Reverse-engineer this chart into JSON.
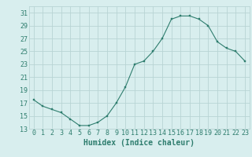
{
  "x": [
    0,
    1,
    2,
    3,
    4,
    5,
    6,
    7,
    8,
    9,
    10,
    11,
    12,
    13,
    14,
    15,
    16,
    17,
    18,
    19,
    20,
    21,
    22,
    23
  ],
  "y": [
    17.5,
    16.5,
    16.0,
    15.5,
    14.5,
    13.5,
    13.5,
    14.0,
    15.0,
    17.0,
    19.5,
    23.0,
    23.5,
    25.0,
    27.0,
    30.0,
    30.5,
    30.5,
    30.0,
    29.0,
    26.5,
    25.5,
    25.0,
    23.5
  ],
  "line_color": "#2e7d6e",
  "marker_color": "#2e7d6e",
  "bg_color": "#d8eeee",
  "grid_color": "#b8d4d4",
  "xlabel": "Humidex (Indice chaleur)",
  "ylim": [
    13,
    32
  ],
  "xlim": [
    -0.5,
    23.5
  ],
  "yticks": [
    13,
    15,
    17,
    19,
    21,
    23,
    25,
    27,
    29,
    31
  ],
  "xticks": [
    0,
    1,
    2,
    3,
    4,
    5,
    6,
    7,
    8,
    9,
    10,
    11,
    12,
    13,
    14,
    15,
    16,
    17,
    18,
    19,
    20,
    21,
    22,
    23
  ],
  "xlabel_fontsize": 7,
  "tick_fontsize": 6
}
